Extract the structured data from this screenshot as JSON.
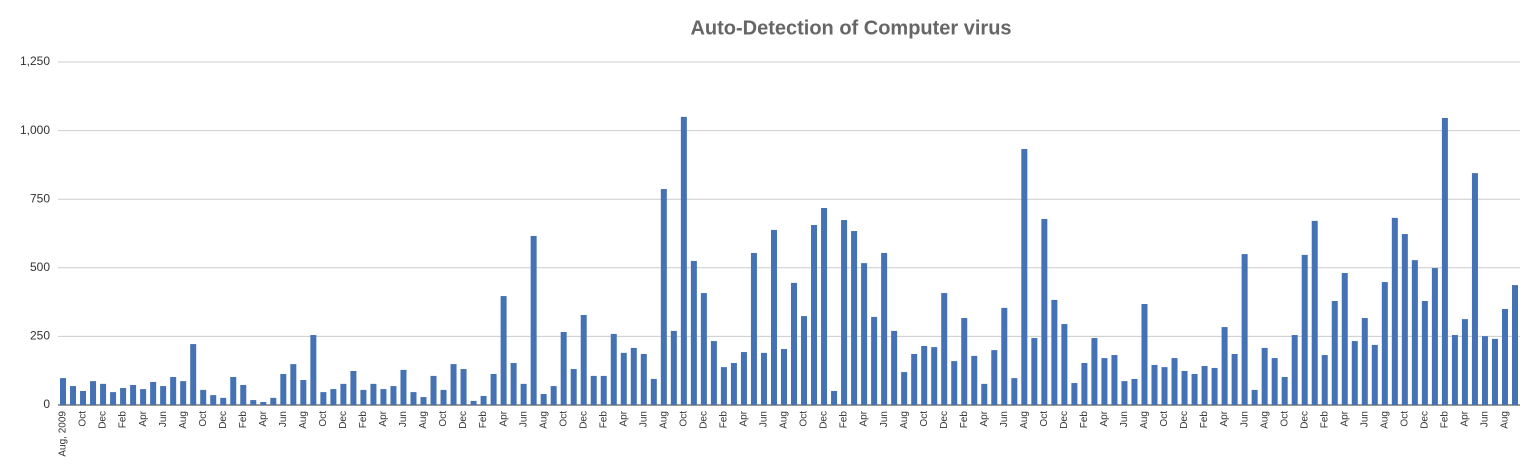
{
  "chart_data": {
    "type": "bar",
    "title": "Auto-Detection of Computer virus",
    "categories": [
      "Aug, 2009",
      null,
      "Oct",
      null,
      "Dec",
      null,
      "Feb",
      null,
      "Apr",
      null,
      "Jun",
      null,
      "Aug",
      null,
      "Oct",
      null,
      "Dec",
      null,
      "Feb",
      null,
      "Apr",
      null,
      "Jun",
      null,
      "Aug",
      null,
      "Oct",
      null,
      "Dec",
      null,
      "Feb",
      null,
      "Apr",
      null,
      "Jun",
      null,
      "Aug",
      null,
      "Oct",
      null,
      "Dec",
      null,
      "Feb",
      null,
      "Apr",
      null,
      "Jun",
      null,
      "Aug",
      null,
      "Oct",
      null,
      "Dec",
      null,
      "Feb",
      null,
      "Apr",
      null,
      "Jun",
      null,
      "Aug",
      null,
      "Oct",
      null,
      "Dec",
      null,
      "Feb",
      null,
      "Apr",
      null,
      "Jun",
      null,
      "Aug",
      null,
      "Oct",
      null,
      "Dec",
      null,
      "Feb",
      null,
      "Apr",
      null,
      "Jun",
      null,
      "Aug",
      null,
      "Oct",
      null,
      "Dec",
      null,
      "Feb",
      null,
      "Apr",
      null,
      "Jun",
      null,
      "Aug",
      null,
      "Oct",
      null,
      "Dec",
      null,
      "Feb",
      null,
      "Apr",
      null,
      "Jun",
      null,
      "Aug",
      null,
      "Oct",
      null,
      "Dec",
      null,
      "Feb",
      null,
      "Apr",
      null,
      "Jun",
      null,
      "Aug",
      null,
      "Oct",
      null,
      "Dec",
      null,
      "Feb",
      null,
      "Apr",
      null,
      "Jun",
      null,
      "Aug",
      null,
      "Oct",
      null,
      "Dec",
      null,
      "Feb",
      null,
      "Apr",
      null,
      "Jun",
      null,
      "Aug",
      null
    ],
    "values": [
      98,
      69,
      51,
      87,
      77,
      47,
      62,
      73,
      58,
      84,
      69,
      102,
      87,
      222,
      55,
      36,
      26,
      102,
      73,
      18,
      11,
      26,
      113,
      149,
      91,
      255,
      47,
      58,
      77,
      124,
      55,
      77,
      58,
      69,
      128,
      47,
      29,
      106,
      55,
      149,
      131,
      15,
      33,
      113,
      397,
      153,
      77,
      616,
      40,
      69,
      266,
      131,
      328,
      106,
      106,
      259,
      190,
      208,
      186,
      95,
      787,
      270,
      1050,
      525,
      408,
      233,
      138,
      153,
      193,
      554,
      190,
      638,
      204,
      445,
      324,
      656,
      718,
      51,
      674,
      634,
      517,
      321,
      554,
      270,
      120,
      186,
      215,
      211,
      408,
      160,
      317,
      179,
      77,
      200,
      354,
      98,
      933,
      244,
      678,
      383,
      295,
      80,
      153,
      244,
      171,
      182,
      87,
      95,
      368,
      146,
      138,
      171,
      124,
      113,
      142,
      135,
      284,
      186,
      550,
      55,
      208,
      171,
      102,
      255,
      547,
      671,
      182,
      379,
      481,
      233,
      317,
      219,
      448,
      682,
      623,
      528,
      379,
      499,
      1046,
      255,
      313,
      845,
      251,
      241,
      350,
      437
    ],
    "color": "#4472b4",
    "ylim": [
      0,
      1250
    ],
    "yticks": [
      0,
      250,
      500,
      750,
      {
        "value": 1000,
        "label": "1,000"
      },
      {
        "value": 1250,
        "label": "1,250"
      }
    ],
    "grid": true
  }
}
